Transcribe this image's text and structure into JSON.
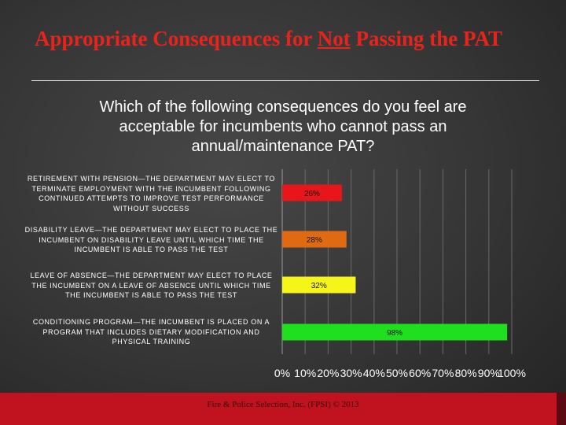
{
  "slide": {
    "title_before": "Appropriate Consequences for ",
    "title_underlined": "Not",
    "title_after": " Passing the PAT",
    "question": "Which of the following consequences do you feel are acceptable for incumbents who cannot pass an annual/maintenance PAT?",
    "footer": "Fire & Police Selection, Inc. (FPSI) © 2013"
  },
  "chart_data": {
    "type": "bar",
    "orientation": "horizontal",
    "categories": [
      "RETIREMENT WITH PENSION—THE DEPARTMENT MAY ELECT TO TERMINATE EMPLOYMENT WITH THE INCUMBENT FOLLOWING CONTINUED ATTEMPTS TO IMPROVE TEST PERFORMANCE WITHOUT SUCCESS",
      "DISABILITY LEAVE—THE DEPARTMENT MAY ELECT TO PLACE THE INCUMBENT ON DISABILITY LEAVE UNTIL WHICH TIME THE INCUMBENT IS ABLE TO PASS THE TEST",
      "LEAVE OF ABSENCE—THE DEPARTMENT MAY ELECT TO PLACE THE INCUMBENT ON A LEAVE OF ABSENCE UNTIL WHICH TIME THE INCUMBENT IS ABLE TO PASS THE TEST",
      "CONDITIONING PROGRAM—THE INCUMBENT IS PLACED ON A PROGRAM THAT INCLUDES DIETARY MODIFICATION AND PHYSICAL TRAINING"
    ],
    "values": [
      26,
      28,
      32,
      98
    ],
    "data_labels": [
      "26%",
      "28%",
      "32%",
      "98%"
    ],
    "colors": [
      "#e8151b",
      "#e06a12",
      "#f5f51a",
      "#1fe01f"
    ],
    "label_color": "#111111",
    "xlim": [
      0,
      100
    ],
    "xticks": [
      0,
      10,
      20,
      30,
      40,
      50,
      60,
      70,
      80,
      90,
      100
    ],
    "xtick_labels": [
      "0%",
      "10%",
      "20%",
      "30%",
      "40%",
      "50%",
      "60%",
      "70%",
      "80%",
      "90%",
      "100%"
    ],
    "grid": true,
    "legend": false
  }
}
